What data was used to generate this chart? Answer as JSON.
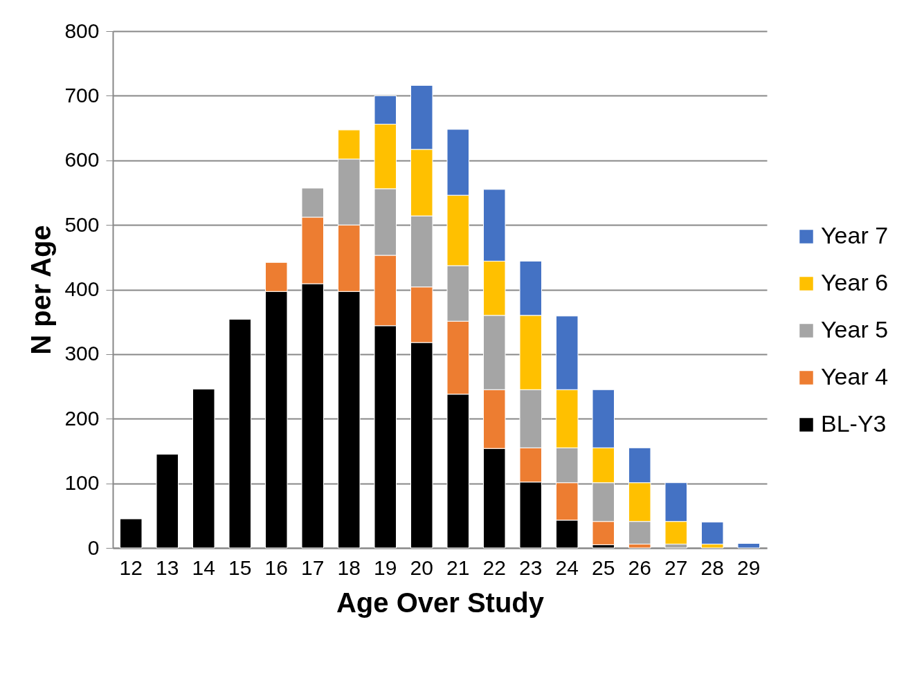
{
  "chart_data": {
    "type": "bar",
    "stacked": true,
    "xlabel": "Age Over Study",
    "ylabel": "N per Age",
    "categories": [
      "12",
      "13",
      "14",
      "15",
      "16",
      "17",
      "18",
      "19",
      "20",
      "21",
      "22",
      "23",
      "24",
      "25",
      "26",
      "27",
      "28",
      "29"
    ],
    "series": [
      {
        "name": "BL-Y3",
        "color": "#000000",
        "values": [
          45,
          145,
          246,
          354,
          397,
          409,
          397,
          344,
          318,
          238,
          154,
          102,
          43,
          5,
          0,
          0,
          0,
          0
        ]
      },
      {
        "name": "Year 4",
        "color": "#ed7d31",
        "values": [
          0,
          0,
          0,
          0,
          45,
          103,
          103,
          109,
          86,
          113,
          91,
          53,
          58,
          36,
          6,
          0,
          0,
          0
        ]
      },
      {
        "name": "Year 5",
        "color": "#a5a5a5",
        "values": [
          0,
          0,
          0,
          0,
          0,
          45,
          102,
          103,
          110,
          86,
          115,
          90,
          54,
          60,
          35,
          6,
          0,
          0
        ]
      },
      {
        "name": "Year 6",
        "color": "#ffc000",
        "values": [
          0,
          0,
          0,
          0,
          0,
          0,
          45,
          100,
          103,
          109,
          84,
          115,
          90,
          54,
          60,
          35,
          6,
          0
        ]
      },
      {
        "name": "Year 7",
        "color": "#4472c4",
        "values": [
          0,
          0,
          0,
          0,
          0,
          0,
          0,
          44,
          99,
          102,
          111,
          84,
          114,
          90,
          54,
          60,
          34,
          7
        ]
      }
    ],
    "ylim": [
      0,
      800
    ],
    "yticks": [
      0,
      100,
      200,
      300,
      400,
      500,
      600,
      700,
      800
    ],
    "grid": "y",
    "legend": "right"
  }
}
